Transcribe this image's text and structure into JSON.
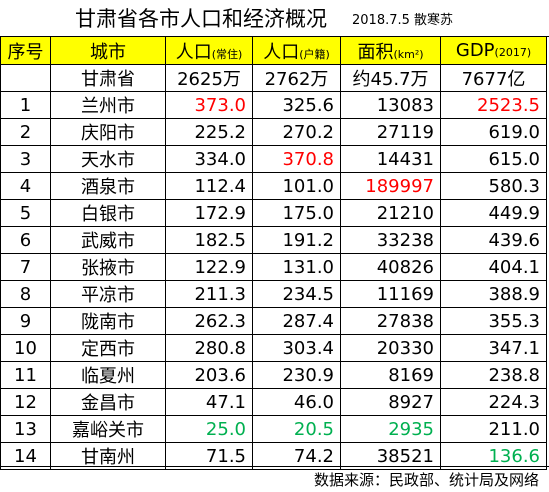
{
  "title": "甘肃省各市人口和经济概况",
  "subtitle": "2018.7.5 散寒苏",
  "headers": {
    "no": "序号",
    "city": "城市",
    "pop_res": "人口",
    "pop_res_note": "(常住)",
    "pop_reg": "人口",
    "pop_reg_note": "(户籍)",
    "area": "面积",
    "area_note": "(km²)",
    "gdp": "GDP",
    "gdp_note": "(2017)"
  },
  "summary": {
    "city": "甘肃省",
    "pop_res": "2625万",
    "pop_reg": "2762万",
    "area": "约45.7万",
    "gdp": "7677亿"
  },
  "rows": [
    {
      "no": "1",
      "city": "兰州市",
      "pop_res": "373.0",
      "pop_reg": "325.6",
      "area": "13083",
      "gdp": "2523.5"
    },
    {
      "no": "2",
      "city": "庆阳市",
      "pop_res": "225.2",
      "pop_reg": "270.2",
      "area": "27119",
      "gdp": "619.0"
    },
    {
      "no": "3",
      "city": "天水市",
      "pop_res": "334.0",
      "pop_reg": "370.8",
      "area": "14431",
      "gdp": "615.0"
    },
    {
      "no": "4",
      "city": "酒泉市",
      "pop_res": "112.4",
      "pop_reg": "101.0",
      "area": "189997",
      "gdp": "580.3"
    },
    {
      "no": "5",
      "city": "白银市",
      "pop_res": "172.9",
      "pop_reg": "175.0",
      "area": "21210",
      "gdp": "449.9"
    },
    {
      "no": "6",
      "city": "武威市",
      "pop_res": "182.5",
      "pop_reg": "191.2",
      "area": "33238",
      "gdp": "439.6"
    },
    {
      "no": "7",
      "city": "张掖市",
      "pop_res": "122.9",
      "pop_reg": "131.0",
      "area": "40826",
      "gdp": "404.1"
    },
    {
      "no": "8",
      "city": "平凉市",
      "pop_res": "211.3",
      "pop_reg": "234.5",
      "area": "11169",
      "gdp": "388.9"
    },
    {
      "no": "9",
      "city": "陇南市",
      "pop_res": "262.3",
      "pop_reg": "287.4",
      "area": "27838",
      "gdp": "355.3"
    },
    {
      "no": "10",
      "city": "定西市",
      "pop_res": "280.8",
      "pop_reg": "303.4",
      "area": "20330",
      "gdp": "347.1"
    },
    {
      "no": "11",
      "city": "临夏州",
      "pop_res": "203.6",
      "pop_reg": "230.9",
      "area": "8169",
      "gdp": "238.8"
    },
    {
      "no": "12",
      "city": "金昌市",
      "pop_res": "47.1",
      "pop_reg": "46.0",
      "area": "8927",
      "gdp": "224.3"
    },
    {
      "no": "13",
      "city": "嘉峪关市",
      "pop_res": "25.0",
      "pop_reg": "20.5",
      "area": "2935",
      "gdp": "211.0"
    },
    {
      "no": "14",
      "city": "甘南州",
      "pop_res": "71.5",
      "pop_reg": "74.2",
      "area": "38521",
      "gdp": "136.6"
    }
  ],
  "source": "数据来源：民政部、统计局及网络",
  "colors": {
    "header_bg": "#ffff00",
    "highlight_max": "#ff0000",
    "highlight_min": "#00b050"
  }
}
